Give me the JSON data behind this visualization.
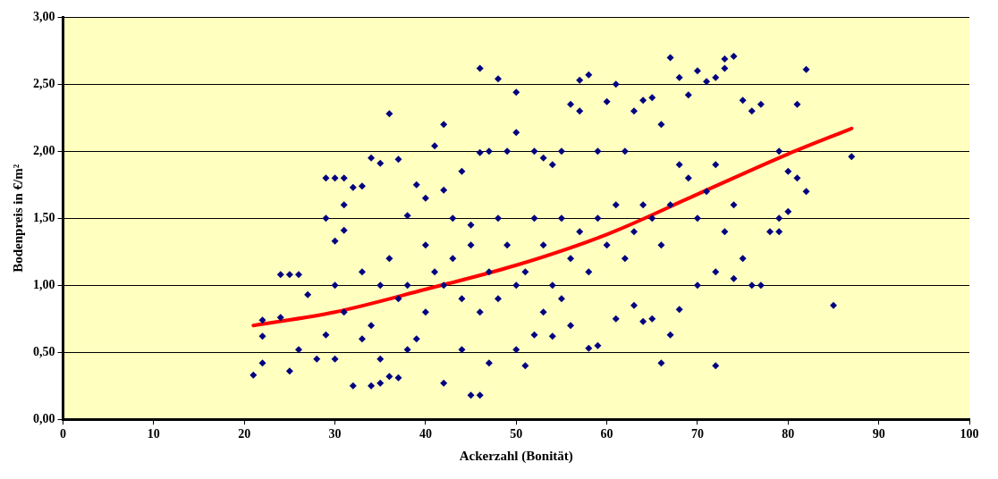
{
  "chart_data": {
    "type": "scatter",
    "xlabel": "Ackerzahl (Bonität)",
    "ylabel": "Bodenpreis in €/m²",
    "xlim": [
      0,
      100
    ],
    "xticks": [
      0,
      10,
      20,
      30,
      40,
      50,
      60,
      70,
      80,
      90,
      100
    ],
    "ylim": [
      0,
      3
    ],
    "yticks": [
      {
        "value": 0,
        "label": "0,00"
      },
      {
        "value": 0.5,
        "label": "0,50"
      },
      {
        "value": 1,
        "label": "1,00"
      },
      {
        "value": 1.5,
        "label": "1,50"
      },
      {
        "value": 2,
        "label": "2,00"
      },
      {
        "value": 2.5,
        "label": "2,50"
      },
      {
        "value": 3,
        "label": "3,00"
      }
    ],
    "grid": "y",
    "legend": false,
    "marker": "diamond",
    "series": [
      {
        "color": "#000080",
        "x": [
          21,
          22,
          22,
          22,
          24,
          24,
          25,
          26,
          25,
          26,
          27,
          28,
          29,
          30,
          31,
          29,
          30,
          31,
          32,
          33,
          31,
          34,
          35,
          36,
          32,
          34,
          35,
          36,
          29,
          30,
          33,
          35,
          37,
          38,
          36,
          37,
          38,
          39,
          40,
          41,
          42,
          42,
          43,
          44,
          45,
          46,
          48,
          50,
          46,
          47,
          49,
          50,
          52,
          53,
          54,
          55,
          56,
          57,
          57,
          58,
          59,
          60,
          61,
          62,
          63,
          64,
          65,
          66,
          67,
          68,
          69,
          70,
          71,
          72,
          73,
          74,
          73,
          75,
          76,
          77,
          79,
          80,
          81,
          82,
          81,
          82,
          80,
          79,
          78,
          79,
          77,
          76,
          75,
          74,
          72,
          67,
          66,
          85,
          87,
          45,
          46,
          44,
          42,
          47,
          51,
          50,
          52,
          54,
          56,
          58,
          59,
          61,
          63,
          64,
          65,
          68,
          70,
          72,
          38,
          40,
          41,
          43,
          44,
          45,
          47,
          48,
          49,
          51,
          52,
          53,
          54,
          55,
          56,
          57,
          58,
          59,
          60,
          61,
          62,
          63,
          64,
          65,
          66,
          67,
          68,
          69,
          70,
          71,
          72,
          73,
          74,
          30,
          31,
          33,
          34,
          35,
          37,
          39,
          40,
          42,
          46,
          48,
          50,
          53,
          55
        ],
        "values": [
          0.33,
          0.42,
          0.62,
          0.74,
          0.76,
          1.08,
          1.08,
          1.08,
          0.36,
          0.52,
          0.93,
          0.45,
          1.8,
          1.8,
          1.8,
          1.5,
          1.33,
          1.6,
          1.73,
          1.74,
          1.41,
          1.95,
          1.91,
          2.28,
          0.25,
          0.25,
          0.27,
          0.32,
          0.63,
          0.45,
          0.6,
          0.45,
          0.31,
          0.52,
          1.2,
          1.94,
          1.52,
          1.75,
          1.65,
          2.04,
          2.2,
          1.71,
          1.5,
          1.85,
          1.45,
          2.62,
          2.54,
          2.44,
          1.99,
          2.0,
          2.0,
          2.14,
          2.0,
          1.95,
          1.9,
          2.0,
          2.35,
          2.3,
          2.53,
          2.57,
          2.0,
          2.37,
          2.5,
          2.0,
          2.3,
          2.38,
          2.4,
          2.2,
          2.7,
          2.55,
          2.42,
          2.6,
          2.52,
          2.55,
          2.62,
          2.71,
          2.69,
          2.38,
          2.3,
          2.35,
          2.0,
          1.85,
          2.35,
          2.61,
          1.8,
          1.7,
          1.55,
          1.5,
          1.4,
          1.4,
          1.0,
          1.0,
          1.2,
          1.05,
          0.4,
          0.63,
          0.42,
          0.85,
          1.96,
          0.18,
          0.18,
          0.52,
          0.27,
          0.42,
          0.4,
          0.52,
          0.63,
          0.62,
          0.7,
          0.53,
          0.55,
          0.75,
          0.85,
          0.73,
          0.75,
          0.82,
          1.0,
          1.1,
          1.0,
          0.8,
          1.1,
          1.2,
          0.9,
          1.3,
          1.1,
          0.9,
          1.3,
          1.1,
          1.5,
          1.3,
          1.0,
          1.5,
          1.2,
          1.4,
          1.1,
          1.5,
          1.3,
          1.6,
          1.2,
          1.4,
          1.6,
          1.5,
          1.3,
          1.6,
          1.9,
          1.8,
          1.5,
          1.7,
          1.9,
          1.4,
          1.6,
          1.0,
          0.8,
          1.1,
          0.7,
          1.0,
          0.9,
          0.6,
          1.3,
          1.0,
          0.8,
          1.5,
          1.0,
          0.8,
          0.9
        ]
      },
      {
        "type": "line",
        "color": "#ff0000",
        "marker": "none",
        "x": [
          21,
          30,
          40,
          50,
          60,
          70,
          80,
          87
        ],
        "values": [
          0.7,
          0.8,
          0.97,
          1.15,
          1.38,
          1.68,
          1.98,
          2.17
        ]
      }
    ]
  }
}
